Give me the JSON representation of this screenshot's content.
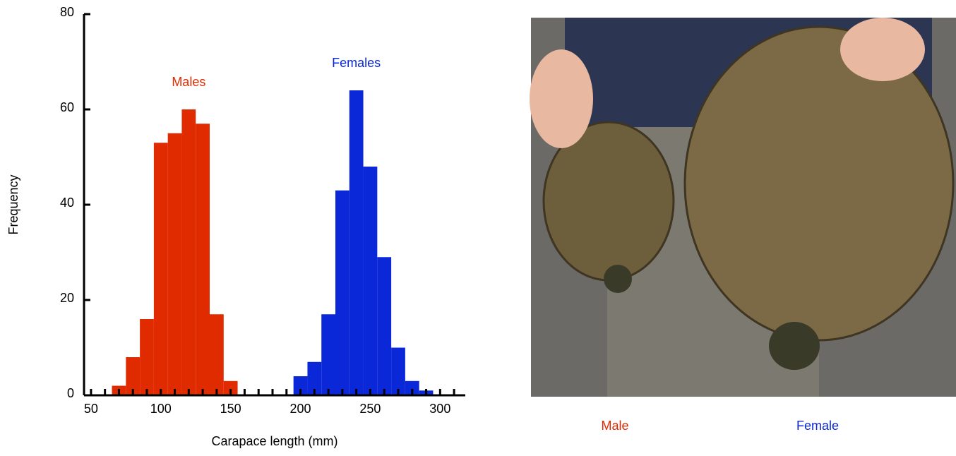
{
  "chart_data": {
    "type": "histogram",
    "xlabel": "Carapace length (mm)",
    "ylabel": "Frequency",
    "xlim": [
      45,
      315
    ],
    "ylim": [
      0,
      80
    ],
    "xticks": [
      50,
      100,
      150,
      200,
      250,
      300
    ],
    "xminor_ticks": [
      60,
      70,
      80,
      90,
      110,
      120,
      130,
      140,
      160,
      170,
      180,
      190,
      210,
      220,
      230,
      240,
      260,
      270,
      280,
      290,
      310
    ],
    "yticks": [
      0,
      20,
      40,
      60,
      80
    ],
    "series": [
      {
        "name": "Males",
        "color": "#e02a00",
        "bins": [
          65,
          75,
          85,
          95,
          105,
          115,
          125,
          135,
          145,
          155
        ],
        "values": [
          2,
          8,
          16,
          53,
          55,
          60,
          57,
          17,
          3
        ]
      },
      {
        "name": "Females",
        "color": "#0a28d8",
        "bins": [
          195,
          205,
          215,
          225,
          235,
          245,
          255,
          265,
          275,
          285,
          295
        ],
        "values": [
          4,
          7,
          17,
          43,
          64,
          48,
          29,
          10,
          3,
          1
        ]
      }
    ]
  },
  "photo": {
    "captions": [
      {
        "text": "Male",
        "color": "#e02a00"
      },
      {
        "text": "Female",
        "color": "#0a28d8"
      }
    ]
  }
}
